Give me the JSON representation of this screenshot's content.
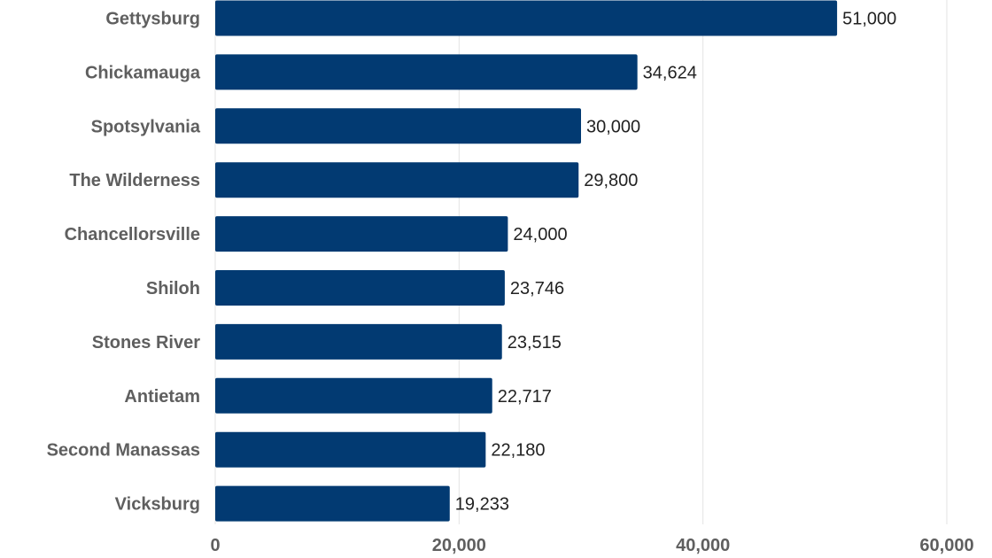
{
  "chart_data": {
    "type": "bar",
    "orientation": "horizontal",
    "title": "",
    "xlabel": "",
    "ylabel": "",
    "categories": [
      "Gettysburg",
      "Chickamauga",
      "Spotsylvania",
      "The Wilderness",
      "Chancellorsville",
      "Shiloh",
      "Stones River",
      "Antietam",
      "Second Manassas",
      "Vicksburg"
    ],
    "values": [
      51000,
      34624,
      30000,
      29800,
      24000,
      23746,
      23515,
      22717,
      22180,
      19233
    ],
    "value_labels": [
      "51,000",
      "34,624",
      "30,000",
      "29,800",
      "24,000",
      "23,746",
      "23,515",
      "22,717",
      "22,180",
      "19,233"
    ],
    "xlim": [
      0,
      60000
    ],
    "x_ticks": [
      0,
      20000,
      40000,
      60000
    ],
    "x_tick_labels": [
      "0",
      "20,000",
      "40,000",
      "60,000"
    ],
    "grid": true,
    "legend": "none",
    "colors": {
      "bar": "#023a72",
      "grid": "#e3e3e3",
      "category_text": "#5f5f5f",
      "value_text": "#222222"
    }
  }
}
